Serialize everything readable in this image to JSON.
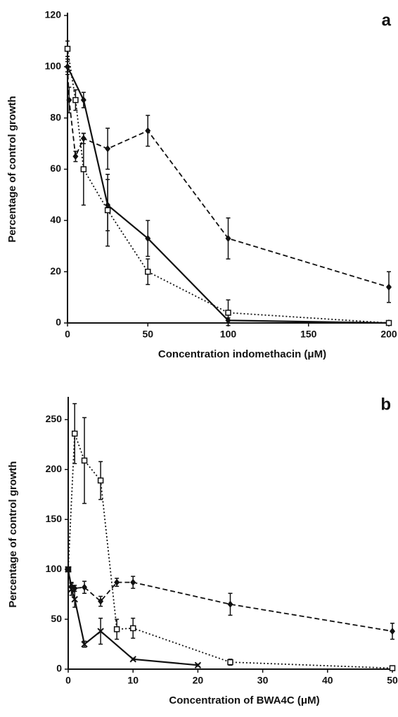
{
  "chart_data": [
    {
      "type": "line",
      "panel_label": "a",
      "x_label": "Concentration indomethacin (μM)",
      "y_label": "Percentage of control growth",
      "xlim": [
        0,
        200
      ],
      "xticks": [
        0,
        50,
        100,
        150,
        200
      ],
      "ylim": [
        0,
        120
      ],
      "yticks": [
        0,
        20,
        40,
        60,
        80,
        100,
        120
      ],
      "series": [
        {
          "color": "#111",
          "line_style": "dashed",
          "marker": "diamond",
          "x": [
            0,
            1,
            5,
            10,
            25,
            50,
            100,
            200
          ],
          "values": [
            100,
            87,
            65,
            72,
            68,
            75,
            33,
            14
          ],
          "errors": [
            3,
            5,
            2,
            2,
            8,
            6,
            8,
            6
          ]
        },
        {
          "color": "#111",
          "line_style": "solid",
          "marker": "diamond",
          "x": [
            0,
            10,
            25,
            50,
            100,
            200
          ],
          "values": [
            100,
            87,
            46,
            33,
            1,
            0
          ],
          "errors": [
            2,
            3,
            10,
            7,
            1,
            0
          ]
        },
        {
          "color": "#111",
          "line_style": "dotted",
          "marker": "square",
          "x": [
            0,
            5,
            10,
            25,
            50,
            100,
            200
          ],
          "values": [
            107,
            87,
            60,
            44,
            20,
            4,
            0
          ],
          "errors": [
            3,
            4,
            14,
            14,
            5,
            5,
            0
          ]
        }
      ]
    },
    {
      "type": "line",
      "panel_label": "b",
      "x_label": "Concentration of BWA4C (μM)",
      "y_label": "Percentage of control growth",
      "xlim": [
        0,
        50
      ],
      "xticks": [
        0,
        10,
        20,
        30,
        40,
        50
      ],
      "ylim": [
        0,
        270
      ],
      "yticks": [
        0,
        50,
        100,
        150,
        200,
        250
      ],
      "series": [
        {
          "color": "#111",
          "line_style": "dotted",
          "marker": "square",
          "x": [
            0,
            1,
            2.5,
            5,
            7.5,
            10,
            25,
            50
          ],
          "values": [
            100,
            236,
            209,
            189,
            40,
            41,
            7,
            1
          ],
          "errors": [
            0,
            30,
            43,
            19,
            10,
            10,
            3,
            1
          ]
        },
        {
          "color": "#111",
          "line_style": "dashed",
          "marker": "diamond",
          "x": [
            0,
            0.5,
            1,
            2.5,
            5,
            7.5,
            10,
            25,
            50
          ],
          "values": [
            100,
            83,
            81,
            82,
            68,
            87,
            87,
            65,
            38
          ],
          "errors": [
            2,
            4,
            3,
            6,
            5,
            4,
            6,
            11,
            8
          ]
        },
        {
          "color": "#111",
          "line_style": "solid",
          "marker": "cross",
          "x": [
            0,
            0.5,
            1,
            2.5,
            5,
            10,
            20
          ],
          "values": [
            100,
            80,
            70,
            25,
            38,
            10,
            4
          ],
          "errors": [
            2,
            6,
            8,
            3,
            13,
            1,
            1
          ]
        }
      ]
    }
  ]
}
